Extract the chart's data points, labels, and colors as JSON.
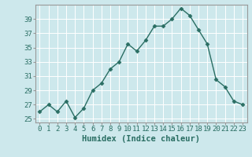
{
  "x": [
    0,
    1,
    2,
    3,
    4,
    5,
    6,
    7,
    8,
    9,
    10,
    11,
    12,
    13,
    14,
    15,
    16,
    17,
    18,
    19,
    20,
    21,
    22,
    23
  ],
  "y": [
    26,
    27,
    26,
    27.5,
    25.2,
    26.5,
    29,
    30,
    32,
    33,
    35.5,
    34.5,
    36,
    38,
    38,
    39,
    40.5,
    39.5,
    37.5,
    35.5,
    30.5,
    29.5,
    27.5,
    27
  ],
  "xlabel": "Humidex (Indice chaleur)",
  "ylim": [
    24.5,
    41.0
  ],
  "xlim": [
    -0.5,
    23.5
  ],
  "yticks": [
    25,
    27,
    29,
    31,
    33,
    35,
    37,
    39
  ],
  "xtick_labels": [
    "0",
    "1",
    "2",
    "3",
    "4",
    "5",
    "6",
    "7",
    "8",
    "9",
    "10",
    "11",
    "12",
    "13",
    "14",
    "15",
    "16",
    "17",
    "18",
    "19",
    "20",
    "21",
    "22",
    "23"
  ],
  "line_color": "#2a6e63",
  "marker": "D",
  "marker_size": 2.5,
  "bg_color": "#cde8ec",
  "grid_color": "#ffffff",
  "axis_color": "#999999",
  "label_color": "#2a6e63",
  "tick_fontsize": 6.5,
  "xlabel_fontsize": 7.5
}
